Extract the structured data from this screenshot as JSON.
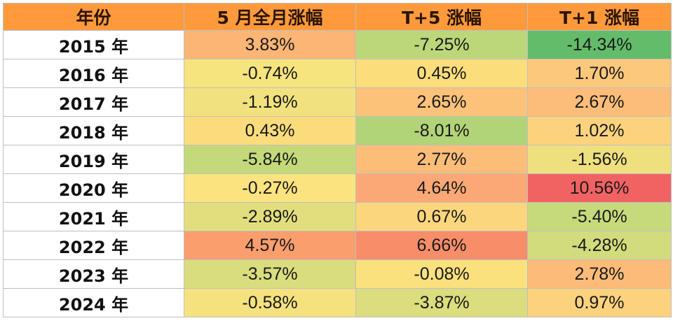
{
  "header_color": "#ff9a3c",
  "columns": [
    "年份",
    "5 月全月涨幅",
    "T+5 涨幅",
    "T+1 涨幅"
  ],
  "rows": [
    {
      "year": "2015 年",
      "values": [
        "3.83%",
        "-7.25%",
        "-14.34%"
      ],
      "colors": [
        "#fbb574",
        "#bcd77a",
        "#63bc6a"
      ]
    },
    {
      "year": "2016 年",
      "values": [
        "-0.74%",
        "0.45%",
        "1.70%"
      ],
      "colors": [
        "#f6e47e",
        "#fbdd7c",
        "#fcc87b"
      ]
    },
    {
      "year": "2017 年",
      "values": [
        "-1.19%",
        "2.65%",
        "2.67%"
      ],
      "colors": [
        "#f1e27f",
        "#fcc27a",
        "#fbbd79"
      ]
    },
    {
      "year": "2018 年",
      "values": [
        "0.43%",
        "-8.01%",
        "1.02%"
      ],
      "colors": [
        "#fbdc7c",
        "#b1d478",
        "#fdd27d"
      ]
    },
    {
      "year": "2019 年",
      "values": [
        "-5.84%",
        "2.77%",
        "-1.56%"
      ],
      "colors": [
        "#c4da7a",
        "#fcbd79",
        "#eee07f"
      ]
    },
    {
      "year": "2020 年",
      "values": [
        "-0.27%",
        "4.64%",
        "10.56%"
      ],
      "colors": [
        "#fbe37f",
        "#fba876",
        "#f16363"
      ]
    },
    {
      "year": "2021 年",
      "values": [
        "-2.89%",
        "0.67%",
        "-5.40%"
      ],
      "colors": [
        "#e2de7e",
        "#fbd67c",
        "#c6da7b"
      ]
    },
    {
      "year": "2022 年",
      "values": [
        "4.57%",
        "6.66%",
        "-4.28%"
      ],
      "colors": [
        "#fa9e6e",
        "#f88d6a",
        "#d3dc7d"
      ]
    },
    {
      "year": "2023 年",
      "values": [
        "-3.57%",
        "-0.08%",
        "2.78%"
      ],
      "colors": [
        "#dadd7e",
        "#fbe07e",
        "#fcbb79"
      ]
    },
    {
      "year": "2024 年",
      "values": [
        "-0.58%",
        "-3.87%",
        "0.97%"
      ],
      "colors": [
        "#f5e27e",
        "#dbdd7e",
        "#fcd27d"
      ]
    }
  ]
}
